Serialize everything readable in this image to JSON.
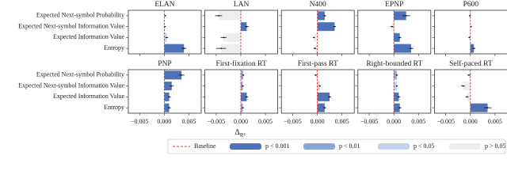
{
  "chart_data": [
    {
      "type": "bar",
      "title": "ELAN",
      "categories": [
        "Expected Next-symbol Probability",
        "Expected Next-symbol Information Value",
        "Expected Information Value",
        "Entropy"
      ],
      "values": [
        0.0002,
        0.0001,
        0.0005,
        0.004
      ],
      "errors": [
        0.0002,
        0.0002,
        0.0003,
        0.0005
      ],
      "colors": [
        "#eeeeee",
        "#c5d0ea",
        "#c5d0ea",
        "#4e72b8"
      ],
      "xlim": [
        -0.0073,
        0.0075
      ],
      "xticks": [
        -0.005,
        0,
        0.005
      ]
    },
    {
      "type": "bar",
      "title": "LAN",
      "values": [
        -0.0045,
        0.0012,
        -0.0035,
        -0.004
      ],
      "errors": [
        0.0007,
        0.0004,
        0.0006,
        0.001
      ],
      "colors": [
        "#eeeeee",
        "#4e72b8",
        "#eeeeee",
        "#eeeeee"
      ],
      "xlim": [
        -0.0073,
        0.0075
      ],
      "xticks": [
        -0.005,
        0,
        0.005
      ]
    },
    {
      "type": "bar",
      "title": "N400",
      "values": [
        0.0015,
        0.0035,
        -0.0007,
        -0.0005
      ],
      "errors": [
        0.0003,
        0.0003,
        0.0002,
        0.0003
      ],
      "colors": [
        "#4e72b8",
        "#4e72b8",
        "#eeeeee",
        "#eeeeee"
      ],
      "xlim": [
        -0.0073,
        0.0075
      ],
      "xticks": [
        -0.005,
        0,
        0.005
      ]
    },
    {
      "type": "bar",
      "title": "EPNP",
      "values": [
        0.0025,
        -0.0004,
        0.0012,
        0.0035
      ],
      "errors": [
        0.0008,
        0.0003,
        0.0003,
        0.0005
      ],
      "colors": [
        "#4e72b8",
        "#eeeeee",
        "#4e72b8",
        "#4e72b8"
      ],
      "xlim": [
        -0.0073,
        0.0075
      ],
      "xticks": [
        -0.005,
        0,
        0.005
      ]
    },
    {
      "type": "bar",
      "title": "P600",
      "values": [
        -0.0001,
        0.0001,
        -0.0002,
        0.0007
      ],
      "errors": [
        0.0002,
        0.0002,
        0.0002,
        0.0003
      ],
      "colors": [
        "#eeeeee",
        "#eeeeee",
        "#eeeeee",
        "#4e72b8"
      ],
      "xlim": [
        -0.0073,
        0.0075
      ],
      "xticks": [
        -0.005,
        0,
        0.005
      ]
    },
    {
      "type": "bar",
      "title": "PNP",
      "categories": [
        "Expected Next-symbol Probability",
        "Expected Next-symbol Information Value",
        "Expected Information Value",
        "Entropy"
      ],
      "values": [
        0.0035,
        0.0015,
        0.001,
        0.001
      ],
      "errors": [
        0.0006,
        0.0004,
        0.0003,
        0.0003
      ],
      "colors": [
        "#4e72b8",
        "#4e72b8",
        "#4e72b8",
        "#4e72b8"
      ],
      "xlim": [
        -0.0073,
        0.0075
      ],
      "xticks": [
        {
          "value": -0.005,
          "label": "−0.005"
        },
        {
          "value": 0,
          "label": "0.000"
        },
        {
          "value": 0.005,
          "label": "0.005"
        }
      ]
    },
    {
      "type": "bar",
      "title": "First-fixation RT",
      "values": [
        0.0005,
        0.0004,
        0.0012,
        0.0004
      ],
      "errors": [
        0.0002,
        0.0002,
        0.0003,
        0.0002
      ],
      "colors": [
        "#8da5d6",
        "#8da5d6",
        "#4e72b8",
        "#8da5d6"
      ],
      "xlim": [
        -0.0073,
        0.0075
      ],
      "xticks": [
        {
          "value": -0.005,
          "label": "−0.005"
        },
        {
          "value": 0,
          "label": "0.000"
        },
        {
          "value": 0.005,
          "label": "0.005"
        }
      ]
    },
    {
      "type": "bar",
      "title": "First-pass RT",
      "values": [
        -0.0003,
        0.0005,
        0.0025,
        0.0015
      ],
      "errors": [
        0.0003,
        0.0002,
        0.0003,
        0.0003
      ],
      "colors": [
        "#eeeeee",
        "#c5d0ea",
        "#4e72b8",
        "#4e72b8"
      ],
      "xlim": [
        -0.0073,
        0.0075
      ],
      "xticks": [
        {
          "value": -0.005,
          "label": "−0.005"
        },
        {
          "value": 0,
          "label": "0.000"
        },
        {
          "value": 0.005,
          "label": "0.005"
        }
      ]
    },
    {
      "type": "bar",
      "title": "Right-bounded RT",
      "values": [
        0.0006,
        0.0006,
        0.001,
        0.0012
      ],
      "errors": [
        0.0002,
        0.0002,
        0.0003,
        0.0003
      ],
      "colors": [
        "#8da5d6",
        "#c5d0ea",
        "#4e72b8",
        "#4e72b8"
      ],
      "xlim": [
        -0.0073,
        0.0075
      ],
      "xticks": [
        {
          "value": -0.005,
          "label": "−0.005"
        },
        {
          "value": 0,
          "label": "0.000"
        },
        {
          "value": 0.005,
          "label": "0.005"
        }
      ]
    },
    {
      "type": "bar",
      "title": "Self-paced RT",
      "values": [
        -0.0003,
        -0.0015,
        -0.0007,
        0.0035
      ],
      "errors": [
        0.0003,
        0.0004,
        0.0003,
        0.0008
      ],
      "colors": [
        "#eeeeee",
        "#eeeeee",
        "#eeeeee",
        "#4e72b8"
      ],
      "xlim": [
        -0.0073,
        0.0075
      ],
      "xticks": [
        {
          "value": -0.005,
          "label": "−0.005"
        },
        {
          "value": 0,
          "label": "0.000"
        },
        {
          "value": 0.005,
          "label": "0.005"
        }
      ]
    }
  ],
  "xlabel": {
    "symbol": "Δ",
    "subscript": "R²"
  },
  "legend": [
    {
      "name": "Baseline",
      "color": "#e03030",
      "style": "dashed"
    },
    {
      "name": "p < 0.001",
      "color": "#4e72b8"
    },
    {
      "name": "p < 0.01",
      "color": "#8da5d6"
    },
    {
      "name": "p < 0.05",
      "color": "#c5d0ea"
    },
    {
      "name": "p > 0.05",
      "color": "#eeeeee"
    }
  ]
}
